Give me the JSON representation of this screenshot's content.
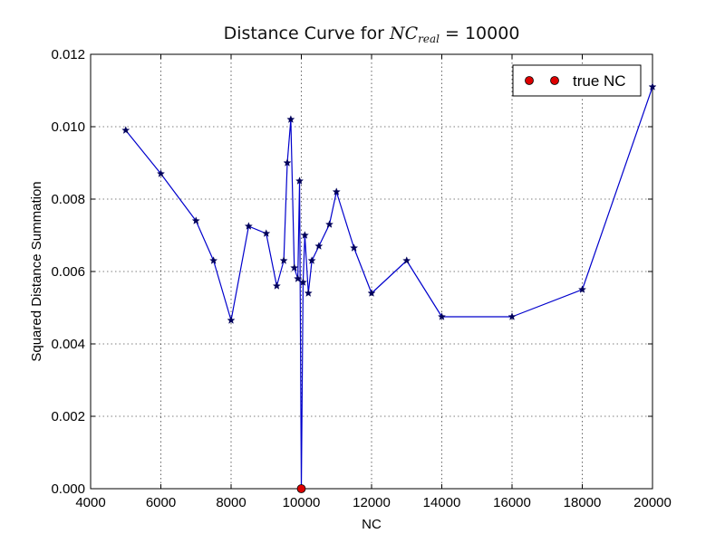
{
  "chart_data": {
    "type": "line",
    "title_prefix": "Distance Curve for ",
    "title_math_base": "NC",
    "title_math_sub": "real",
    "title_suffix": " = 10000",
    "xlabel": "NC",
    "ylabel": "Squared Distance Summation",
    "xlim": [
      4000,
      20000
    ],
    "ylim": [
      0,
      0.012
    ],
    "xticks": [
      4000,
      6000,
      8000,
      10000,
      12000,
      14000,
      16000,
      18000,
      20000
    ],
    "yticks": [
      0.0,
      0.002,
      0.004,
      0.006,
      0.008,
      0.01,
      0.012
    ],
    "ytick_labels": [
      "0.000",
      "0.002",
      "0.004",
      "0.006",
      "0.008",
      "0.010",
      "0.012"
    ],
    "grid": true,
    "legend_position": "top-right",
    "series": [
      {
        "color": "#0000cc",
        "marker": "star",
        "points": [
          [
            5000,
            0.0099
          ],
          [
            6000,
            0.0087
          ],
          [
            7000,
            0.0074
          ],
          [
            7500,
            0.0063
          ],
          [
            8000,
            0.00465
          ],
          [
            8500,
            0.00725
          ],
          [
            9000,
            0.00705
          ],
          [
            9300,
            0.0056
          ],
          [
            9500,
            0.0063
          ],
          [
            9600,
            0.009
          ],
          [
            9700,
            0.0102
          ],
          [
            9800,
            0.0061
          ],
          [
            9900,
            0.0058
          ],
          [
            9950,
            0.0085
          ],
          [
            10000,
            0.0
          ],
          [
            10050,
            0.0057
          ],
          [
            10100,
            0.007
          ],
          [
            10200,
            0.0054
          ],
          [
            10300,
            0.0063
          ],
          [
            10500,
            0.0067
          ],
          [
            10800,
            0.0073
          ],
          [
            11000,
            0.0082
          ],
          [
            11500,
            0.00665
          ],
          [
            12000,
            0.0054
          ],
          [
            13000,
            0.0063
          ],
          [
            14000,
            0.00475
          ],
          [
            16000,
            0.00475
          ],
          [
            18000,
            0.0055
          ],
          [
            20000,
            0.0111
          ]
        ]
      },
      {
        "name": "true NC",
        "color": "#dd0000",
        "marker": "circle",
        "points": [
          [
            10000,
            0.0
          ]
        ]
      }
    ]
  }
}
